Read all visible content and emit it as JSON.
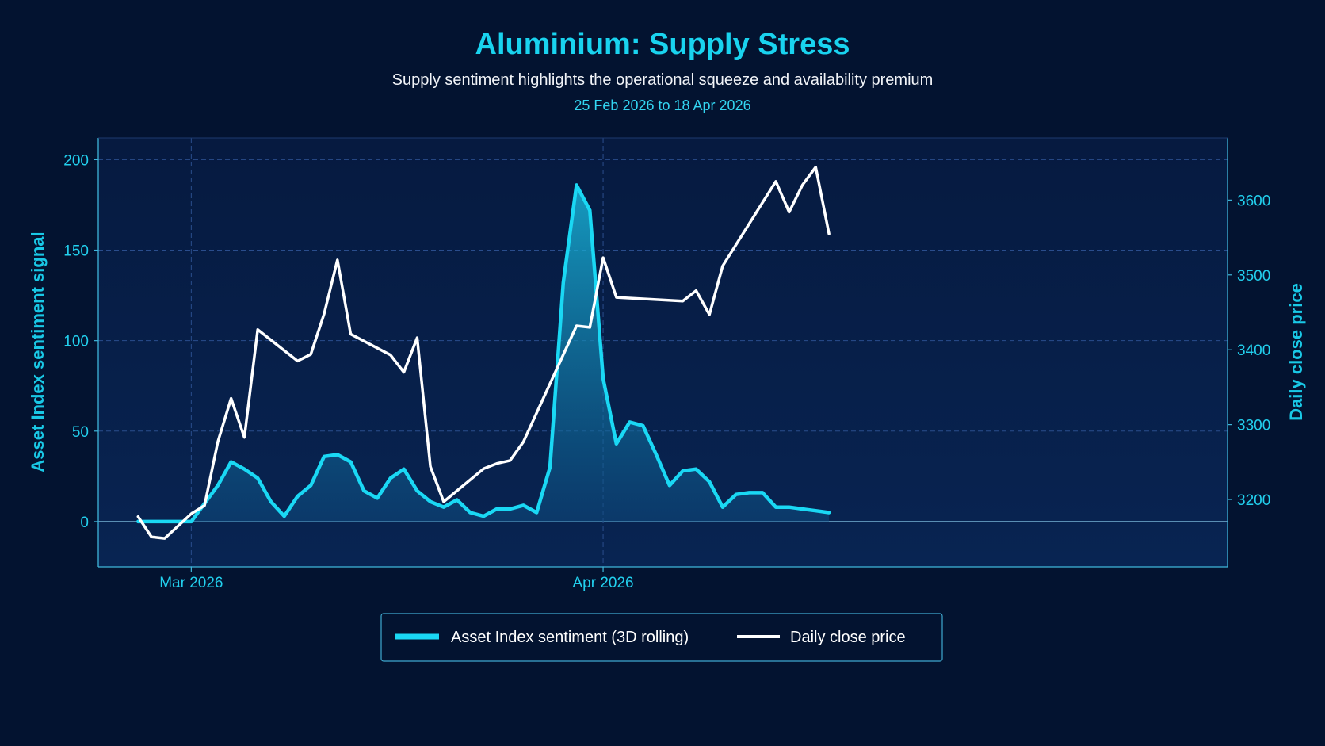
{
  "header": {
    "title": "Aluminium: Supply Stress",
    "subtitle": "Supply sentiment highlights the operational squeeze and availability premium",
    "date_range": "25 Feb 2026 to 18 Apr 2026"
  },
  "colors": {
    "background": "#031330",
    "plot_background": "#061c44",
    "sentiment": "#1ad8f4",
    "price": "#ffffff",
    "accent_text": "#19d3ef",
    "grid": "#2a4d8c",
    "zero_line": "#8ccfee"
  },
  "chart_data": {
    "type": "line",
    "title": "Aluminium: Supply Stress",
    "subtitle": "Supply sentiment highlights the operational squeeze and availability premium",
    "x_ticks": [
      {
        "label": "Mar 2026",
        "date": "2026-03-01"
      },
      {
        "label": "Apr 2026",
        "date": "2026-04-01"
      }
    ],
    "x_range": [
      "2026-02-22",
      "2026-05-18"
    ],
    "y_left": {
      "label": "Asset Index sentiment signal",
      "range": [
        -25,
        212
      ],
      "ticks": [
        0,
        50,
        100,
        150,
        200
      ]
    },
    "y_right": {
      "label": "Daily close price",
      "range": [
        3110,
        3683
      ],
      "ticks": [
        3200,
        3300,
        3400,
        3500,
        3600
      ]
    },
    "grid": true,
    "legend_position": "bottom-center",
    "series": [
      {
        "name": "Asset Index sentiment (3D rolling)",
        "axis": "left",
        "style": "area",
        "points": [
          [
            "2026-02-25",
            0
          ],
          [
            "2026-02-26",
            0
          ],
          [
            "2026-02-27",
            0
          ],
          [
            "2026-02-28",
            0
          ],
          [
            "2026-03-01",
            0
          ],
          [
            "2026-03-02",
            10
          ],
          [
            "2026-03-03",
            20
          ],
          [
            "2026-03-04",
            33
          ],
          [
            "2026-03-05",
            29
          ],
          [
            "2026-03-06",
            24
          ],
          [
            "2026-03-07",
            11
          ],
          [
            "2026-03-08",
            3
          ],
          [
            "2026-03-09",
            14
          ],
          [
            "2026-03-10",
            20
          ],
          [
            "2026-03-11",
            36
          ],
          [
            "2026-03-12",
            37
          ],
          [
            "2026-03-13",
            33
          ],
          [
            "2026-03-14",
            17
          ],
          [
            "2026-03-15",
            13
          ],
          [
            "2026-03-16",
            24
          ],
          [
            "2026-03-17",
            29
          ],
          [
            "2026-03-18",
            17
          ],
          [
            "2026-03-19",
            11
          ],
          [
            "2026-03-20",
            8
          ],
          [
            "2026-03-21",
            12
          ],
          [
            "2026-03-22",
            5
          ],
          [
            "2026-03-23",
            3
          ],
          [
            "2026-03-24",
            7
          ],
          [
            "2026-03-25",
            7
          ],
          [
            "2026-03-26",
            9
          ],
          [
            "2026-03-27",
            5
          ],
          [
            "2026-03-28",
            30
          ],
          [
            "2026-03-29",
            132
          ],
          [
            "2026-03-30",
            186
          ],
          [
            "2026-03-31",
            172
          ],
          [
            "2026-04-01",
            79
          ],
          [
            "2026-04-02",
            43
          ],
          [
            "2026-04-03",
            55
          ],
          [
            "2026-04-04",
            53
          ],
          [
            "2026-04-05",
            37
          ],
          [
            "2026-04-06",
            20
          ],
          [
            "2026-04-07",
            28
          ],
          [
            "2026-04-08",
            29
          ],
          [
            "2026-04-09",
            22
          ],
          [
            "2026-04-10",
            8
          ],
          [
            "2026-04-11",
            15
          ],
          [
            "2026-04-12",
            16
          ],
          [
            "2026-04-13",
            16
          ],
          [
            "2026-04-14",
            8
          ],
          [
            "2026-04-15",
            8
          ],
          [
            "2026-04-16",
            7
          ],
          [
            "2026-04-17",
            6
          ],
          [
            "2026-04-18",
            5
          ]
        ]
      },
      {
        "name": "Daily close price",
        "axis": "right",
        "style": "line",
        "points": [
          [
            "2026-02-25",
            3177
          ],
          [
            "2026-02-26",
            3150
          ],
          [
            "2026-02-27",
            3148
          ],
          [
            "2026-03-01",
            3181
          ],
          [
            "2026-03-02",
            3192
          ],
          [
            "2026-03-03",
            3277
          ],
          [
            "2026-03-04",
            3335
          ],
          [
            "2026-03-05",
            3283
          ],
          [
            "2026-03-06",
            3427
          ],
          [
            "2026-03-09",
            3385
          ],
          [
            "2026-03-10",
            3394
          ],
          [
            "2026-03-11",
            3448
          ],
          [
            "2026-03-12",
            3520
          ],
          [
            "2026-03-13",
            3421
          ],
          [
            "2026-03-16",
            3393
          ],
          [
            "2026-03-17",
            3370
          ],
          [
            "2026-03-18",
            3416
          ],
          [
            "2026-03-19",
            3244
          ],
          [
            "2026-03-20",
            3197
          ],
          [
            "2026-03-23",
            3241
          ],
          [
            "2026-03-24",
            3248
          ],
          [
            "2026-03-25",
            3252
          ],
          [
            "2026-03-26",
            3277
          ],
          [
            "2026-03-30",
            3432
          ],
          [
            "2026-03-31",
            3430
          ],
          [
            "2026-04-01",
            3523
          ],
          [
            "2026-04-02",
            3470
          ],
          [
            "2026-04-07",
            3465
          ],
          [
            "2026-04-08",
            3479
          ],
          [
            "2026-04-09",
            3447
          ],
          [
            "2026-04-10",
            3512
          ],
          [
            "2026-04-14",
            3625
          ],
          [
            "2026-04-15",
            3584
          ],
          [
            "2026-04-16",
            3620
          ],
          [
            "2026-04-17",
            3644
          ],
          [
            "2026-04-18",
            3555
          ]
        ]
      }
    ]
  }
}
